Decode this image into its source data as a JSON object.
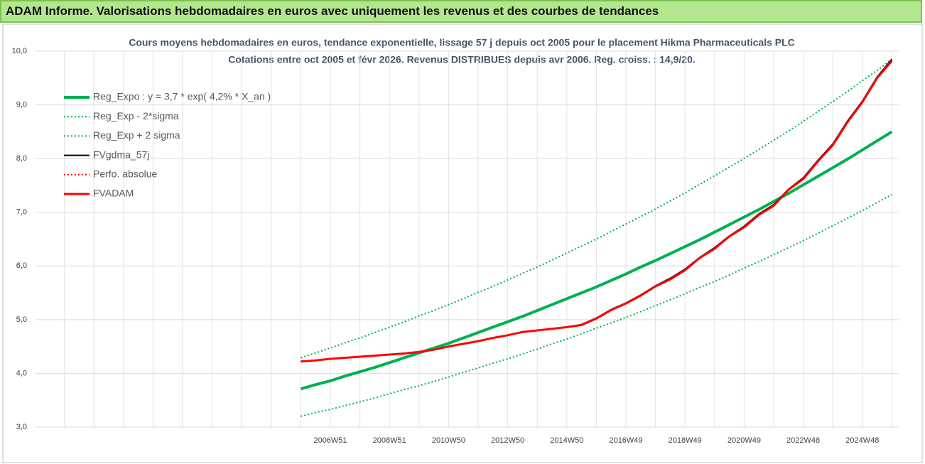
{
  "header_title": "ADAM Informe. Valorisations hebdomadaires en euros avec uniquement les revenus et des courbes de tendances",
  "chart_data": {
    "type": "line",
    "title": "Cours moyens hebdomadaires en euros, tendance exponentielle, lissage 57 j depuis oct 2005 pour le placement Hikma Pharmaceuticals PLC",
    "subtitle": "Cotations entre oct 2005 et févr 2026. Revenus DISTRIBUES depuis avr 2006.  Reg. croiss. : 14,9/20.",
    "categories": [
      null,
      null,
      null,
      null,
      null,
      null,
      null,
      null,
      null,
      null,
      null,
      null,
      null,
      null,
      null,
      null,
      null,
      null,
      null,
      null,
      "2006W51",
      null,
      null,
      null,
      "2008W51",
      null,
      null,
      null,
      "2010W50",
      null,
      null,
      null,
      "2012W50",
      null,
      null,
      null,
      "2014W50",
      null,
      null,
      null,
      "2016W49",
      null,
      null,
      null,
      "2018W49",
      null,
      null,
      null,
      "2020W49",
      null,
      null,
      null,
      "2022W48",
      null,
      null,
      null,
      "2024W48",
      null,
      null
    ],
    "ylim": [
      3,
      10
    ],
    "yticks": [
      {
        "value": 3,
        "label": "3,0"
      },
      {
        "value": 4,
        "label": "4,0"
      },
      {
        "value": 5,
        "label": "5,0"
      },
      {
        "value": 6,
        "label": "6,0"
      },
      {
        "value": 7,
        "label": "7,0"
      },
      {
        "value": 8,
        "label": "8,0"
      },
      {
        "value": 9,
        "label": "9,0"
      },
      {
        "value": 10,
        "label": "10,0"
      }
    ],
    "grid": true,
    "legend": "upper left",
    "series": [
      {
        "name": "Reg_Expo : y = 3,7 * exp( 4,2% *  X_an )",
        "color": "#00b050",
        "style": "solid",
        "line_width": 4,
        "values": [
          null,
          null,
          null,
          null,
          null,
          null,
          null,
          null,
          null,
          null,
          null,
          null,
          null,
          null,
          null,
          null,
          null,
          null,
          3.71,
          3.79,
          3.86,
          3.95,
          4.03,
          4.11,
          4.2,
          4.29,
          4.38,
          4.47,
          4.56,
          4.66,
          4.76,
          4.86,
          4.96,
          5.06,
          5.17,
          5.28,
          5.39,
          5.5,
          5.61,
          5.73,
          5.85,
          5.98,
          6.1,
          6.23,
          6.36,
          6.49,
          6.63,
          6.77,
          6.91,
          7.05,
          7.2,
          7.35,
          7.51,
          7.67,
          7.83,
          7.99,
          8.16,
          8.33,
          8.5
        ]
      },
      {
        "name": "Reg_Exp - 2*sigma",
        "color": "#00b050",
        "style": "dotted",
        "line_width": 2,
        "values": [
          null,
          null,
          null,
          null,
          null,
          null,
          null,
          null,
          null,
          null,
          null,
          null,
          null,
          null,
          null,
          null,
          null,
          null,
          3.2,
          3.27,
          3.33,
          3.4,
          3.47,
          3.54,
          3.62,
          3.7,
          3.77,
          3.85,
          3.93,
          4.02,
          4.1,
          4.19,
          4.27,
          4.36,
          4.45,
          4.55,
          4.64,
          4.74,
          4.84,
          4.94,
          5.04,
          5.15,
          5.26,
          5.37,
          5.48,
          5.6,
          5.71,
          5.83,
          5.96,
          6.08,
          6.21,
          6.34,
          6.47,
          6.61,
          6.75,
          6.89,
          7.03,
          7.18,
          7.33
        ]
      },
      {
        "name": "Reg_Exp + 2 sigma",
        "color": "#00b050",
        "style": "dotted",
        "line_width": 2,
        "values": [
          null,
          null,
          null,
          null,
          null,
          null,
          null,
          null,
          null,
          null,
          null,
          null,
          null,
          null,
          null,
          null,
          null,
          null,
          4.29,
          4.38,
          4.47,
          4.57,
          4.66,
          4.76,
          4.86,
          4.96,
          5.07,
          5.17,
          5.28,
          5.39,
          5.51,
          5.62,
          5.74,
          5.86,
          5.98,
          6.11,
          6.24,
          6.37,
          6.5,
          6.64,
          6.78,
          6.92,
          7.06,
          7.21,
          7.36,
          7.52,
          7.68,
          7.84,
          8.0,
          8.17,
          8.34,
          8.51,
          8.69,
          8.88,
          9.06,
          9.25,
          9.45,
          9.64,
          9.85
        ]
      },
      {
        "name": "FVgdma_57j",
        "color": "#000000",
        "style": "solid",
        "line_width": 2,
        "values": [
          null,
          null,
          null,
          null,
          null,
          null,
          null,
          null,
          null,
          null,
          null,
          null,
          null,
          null,
          null,
          null,
          null,
          null,
          4.22,
          4.24,
          4.27,
          4.29,
          4.31,
          4.33,
          4.35,
          4.37,
          4.4,
          4.44,
          4.5,
          4.55,
          4.6,
          4.66,
          4.71,
          4.77,
          4.8,
          4.83,
          4.86,
          4.91,
          5.03,
          5.19,
          5.31,
          5.46,
          5.63,
          5.77,
          5.94,
          6.16,
          6.34,
          6.56,
          6.74,
          6.97,
          7.14,
          7.43,
          7.64,
          7.97,
          8.27,
          8.7,
          9.07,
          9.52,
          9.85
        ]
      },
      {
        "name": "Perfo. absolue",
        "color": "#ff0000",
        "style": "dotted",
        "line_width": 2,
        "values": [
          null,
          null,
          null,
          null,
          null,
          null,
          null,
          null,
          null,
          null,
          null,
          null,
          null,
          null,
          null,
          null,
          null,
          null,
          4.22,
          4.24,
          4.27,
          4.29,
          4.31,
          4.33,
          4.35,
          4.37,
          4.4,
          4.44,
          4.5,
          4.55,
          4.6,
          4.66,
          4.71,
          4.77,
          4.8,
          4.83,
          4.86,
          4.9,
          5.02,
          5.18,
          5.3,
          5.45,
          5.62,
          5.75,
          5.92,
          6.15,
          6.32,
          6.55,
          6.72,
          6.95,
          7.12,
          7.42,
          7.62,
          7.95,
          8.25,
          8.68,
          9.05,
          9.5,
          9.82
        ]
      },
      {
        "name": "FVADAM",
        "color": "#ff0000",
        "style": "solid",
        "line_width": 3,
        "values": [
          null,
          null,
          null,
          null,
          null,
          null,
          null,
          null,
          null,
          null,
          null,
          null,
          null,
          null,
          null,
          null,
          null,
          null,
          4.22,
          4.24,
          4.27,
          4.29,
          4.31,
          4.33,
          4.35,
          4.37,
          4.4,
          4.44,
          4.5,
          4.55,
          4.6,
          4.66,
          4.71,
          4.77,
          4.8,
          4.83,
          4.86,
          4.9,
          5.02,
          5.18,
          5.3,
          5.45,
          5.62,
          5.75,
          5.92,
          6.15,
          6.32,
          6.55,
          6.72,
          6.95,
          7.12,
          7.42,
          7.62,
          7.95,
          8.25,
          8.68,
          9.05,
          9.5,
          9.82
        ]
      }
    ]
  }
}
